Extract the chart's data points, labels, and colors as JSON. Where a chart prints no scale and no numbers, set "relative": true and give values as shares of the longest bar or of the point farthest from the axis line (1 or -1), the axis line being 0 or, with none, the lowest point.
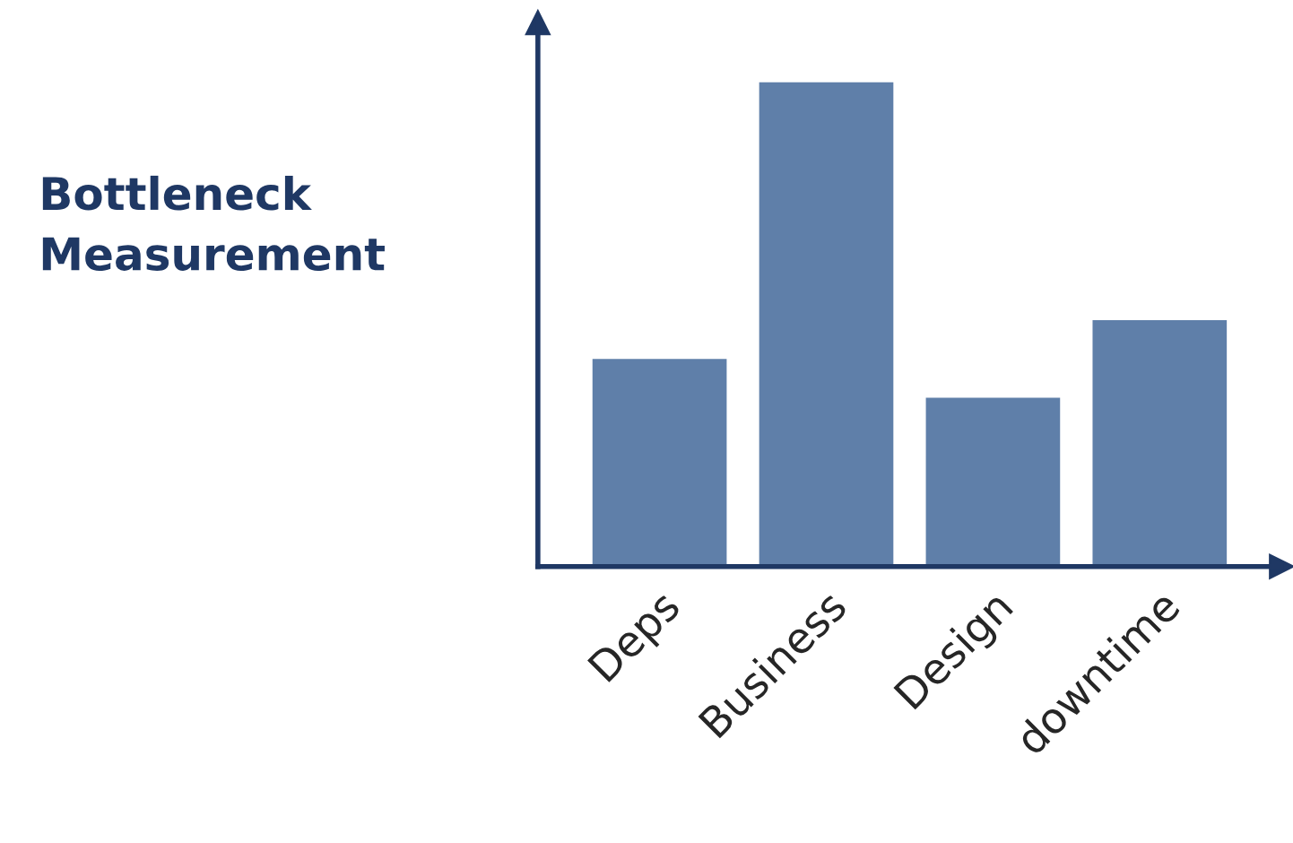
{
  "chart_data": {
    "type": "bar",
    "title": "Bottleneck\nMeasurement",
    "relative": true,
    "categories": [
      "Deps",
      "Business",
      "Design",
      "downtime"
    ],
    "values": [
      0.43,
      1,
      0.35,
      0.51
    ],
    "color": "#5f7fa9",
    "grid": false,
    "legend": false
  }
}
